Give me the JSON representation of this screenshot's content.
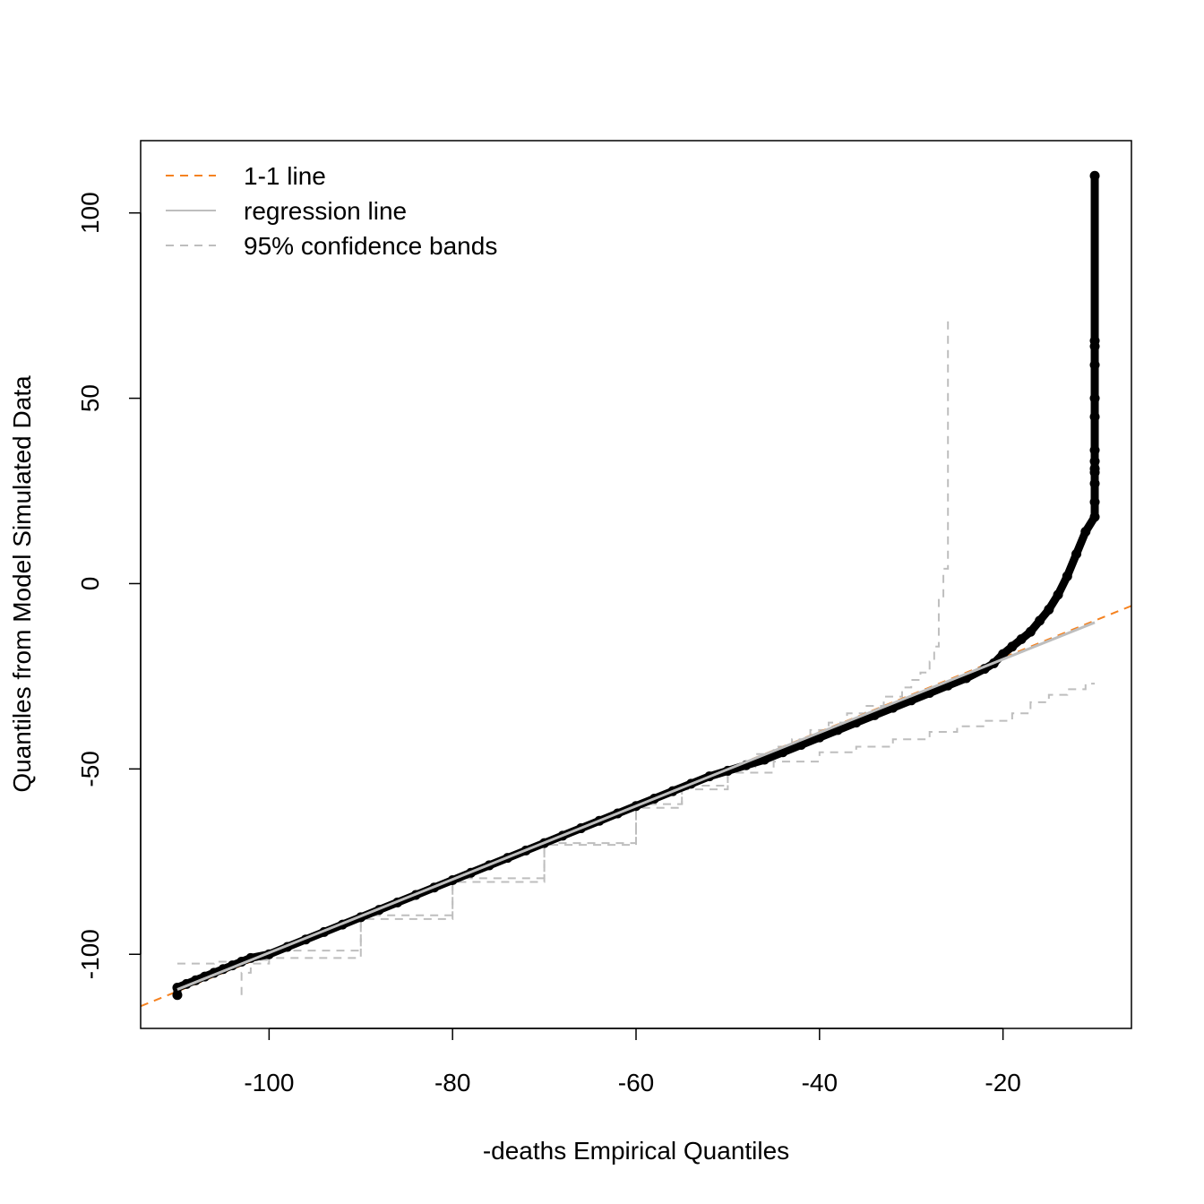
{
  "chart_data": {
    "type": "scatter",
    "title": "",
    "xlabel": "-deaths Empirical Quantiles",
    "ylabel": "Quantiles from Model Simulated Data",
    "xlim": [
      -114,
      -6
    ],
    "ylim": [
      -120,
      119.5
    ],
    "x_ticks": [
      -100,
      -80,
      -60,
      -40,
      -20
    ],
    "x_tick_labels": [
      "-100",
      "-80",
      "-60",
      "-40",
      "-20"
    ],
    "y_ticks": [
      -100,
      -50,
      0,
      50,
      100
    ],
    "y_tick_labels": [
      "-100",
      "-50",
      "0",
      "50",
      "100"
    ],
    "grid": false,
    "legend_position": "top-left",
    "legend": [
      {
        "label": "1-1 line",
        "style": "dashed",
        "color": "#F58220"
      },
      {
        "label": "regression line",
        "style": "solid",
        "color": "#BEBEBE"
      },
      {
        "label": "95% confidence bands",
        "style": "dashed",
        "color": "#BEBEBE"
      }
    ],
    "one_to_one_line": {
      "slope": 1,
      "intercept": 0,
      "color": "#F58220"
    },
    "regression_line": {
      "x": [
        -110,
        -10
      ],
      "y": [
        -109.5,
        -10.5
      ],
      "color": "#BEBEBE"
    },
    "series": [
      {
        "color": "#000000",
        "points": [
          [
            -110,
            -111
          ],
          [
            -110,
            -109
          ],
          [
            -109,
            -108
          ],
          [
            -108,
            -107
          ],
          [
            -107,
            -106
          ],
          [
            -106,
            -105
          ],
          [
            -105,
            -104
          ],
          [
            -104,
            -103
          ],
          [
            -103,
            -102
          ],
          [
            -102,
            -101
          ],
          [
            -100,
            -100
          ],
          [
            -98,
            -98
          ],
          [
            -96,
            -96
          ],
          [
            -94,
            -94
          ],
          [
            -92,
            -92
          ],
          [
            -90,
            -90
          ],
          [
            -88,
            -88
          ],
          [
            -86,
            -86
          ],
          [
            -84,
            -84
          ],
          [
            -82,
            -82
          ],
          [
            -80,
            -80
          ],
          [
            -78,
            -78
          ],
          [
            -76,
            -76
          ],
          [
            -74,
            -74
          ],
          [
            -72,
            -72
          ],
          [
            -70,
            -70
          ],
          [
            -68,
            -68
          ],
          [
            -66,
            -66
          ],
          [
            -64,
            -64
          ],
          [
            -62,
            -62
          ],
          [
            -60,
            -60
          ],
          [
            -58,
            -58
          ],
          [
            -56,
            -56
          ],
          [
            -54,
            -54
          ],
          [
            -52,
            -52
          ],
          [
            -50,
            -50.5
          ],
          [
            -48,
            -49
          ],
          [
            -46,
            -47.5
          ],
          [
            -44,
            -45.5
          ],
          [
            -42,
            -43.5
          ],
          [
            -40,
            -41.5
          ],
          [
            -38,
            -39.5
          ],
          [
            -36,
            -37.5
          ],
          [
            -34,
            -35.5
          ],
          [
            -32,
            -33.5
          ],
          [
            -30,
            -31.5
          ],
          [
            -28,
            -29.5
          ],
          [
            -26,
            -27.5
          ],
          [
            -24,
            -25.5
          ],
          [
            -22,
            -23
          ],
          [
            -21,
            -21.5
          ],
          [
            -20,
            -19
          ],
          [
            -19,
            -17
          ],
          [
            -18,
            -15
          ],
          [
            -17,
            -13
          ],
          [
            -16,
            -10
          ],
          [
            -15,
            -7
          ],
          [
            -14,
            -3
          ],
          [
            -13,
            2
          ],
          [
            -12,
            8
          ],
          [
            -11,
            14
          ],
          [
            -10,
            18
          ],
          [
            -10,
            22
          ],
          [
            -10,
            27
          ],
          [
            -10,
            30
          ],
          [
            -10,
            31
          ],
          [
            -10,
            33
          ],
          [
            -10,
            36
          ],
          [
            -10,
            45
          ],
          [
            -10,
            50
          ],
          [
            -10,
            59
          ],
          [
            -10,
            64
          ],
          [
            -10,
            65.5
          ],
          [
            -10,
            110
          ]
        ]
      }
    ],
    "confidence_bands": {
      "upper": [
        [
          -110,
          -102.5
        ],
        [
          -106,
          -102
        ],
        [
          -103,
          -101.5
        ],
        [
          -100,
          -99
        ],
        [
          -90,
          -89.5
        ],
        [
          -80,
          -79.5
        ],
        [
          -70,
          -70
        ],
        [
          -60,
          -59.5
        ],
        [
          -55,
          -54.5
        ],
        [
          -50,
          -49.5
        ],
        [
          -47,
          -46
        ],
        [
          -45,
          -44
        ],
        [
          -43,
          -42
        ],
        [
          -41,
          -39.5
        ],
        [
          -39,
          -37.5
        ],
        [
          -37,
          -35
        ],
        [
          -35,
          -33
        ],
        [
          -33,
          -30.5
        ],
        [
          -31,
          -28
        ],
        [
          -30,
          -26
        ],
        [
          -29,
          -24
        ],
        [
          -28,
          -21
        ],
        [
          -27.5,
          -17
        ],
        [
          -27,
          -6
        ],
        [
          -27,
          -4
        ],
        [
          -26.5,
          4
        ],
        [
          -26,
          5
        ],
        [
          -26,
          71
        ]
      ],
      "lower": [
        [
          -103,
          -111
        ],
        [
          -103,
          -105
        ],
        [
          -102,
          -102.5
        ],
        [
          -100,
          -101
        ],
        [
          -90,
          -90.5
        ],
        [
          -80,
          -80.5
        ],
        [
          -70,
          -70.5
        ],
        [
          -60,
          -60.5
        ],
        [
          -55,
          -55.5
        ],
        [
          -50,
          -51
        ],
        [
          -45,
          -48
        ],
        [
          -40,
          -45.5
        ],
        [
          -36,
          -44
        ],
        [
          -32,
          -42
        ],
        [
          -28,
          -40
        ],
        [
          -25,
          -38.5
        ],
        [
          -22,
          -37
        ],
        [
          -19,
          -35
        ],
        [
          -17,
          -32
        ],
        [
          -15,
          -30
        ],
        [
          -13,
          -28.5
        ],
        [
          -11,
          -27
        ],
        [
          -10,
          -27
        ]
      ]
    }
  }
}
